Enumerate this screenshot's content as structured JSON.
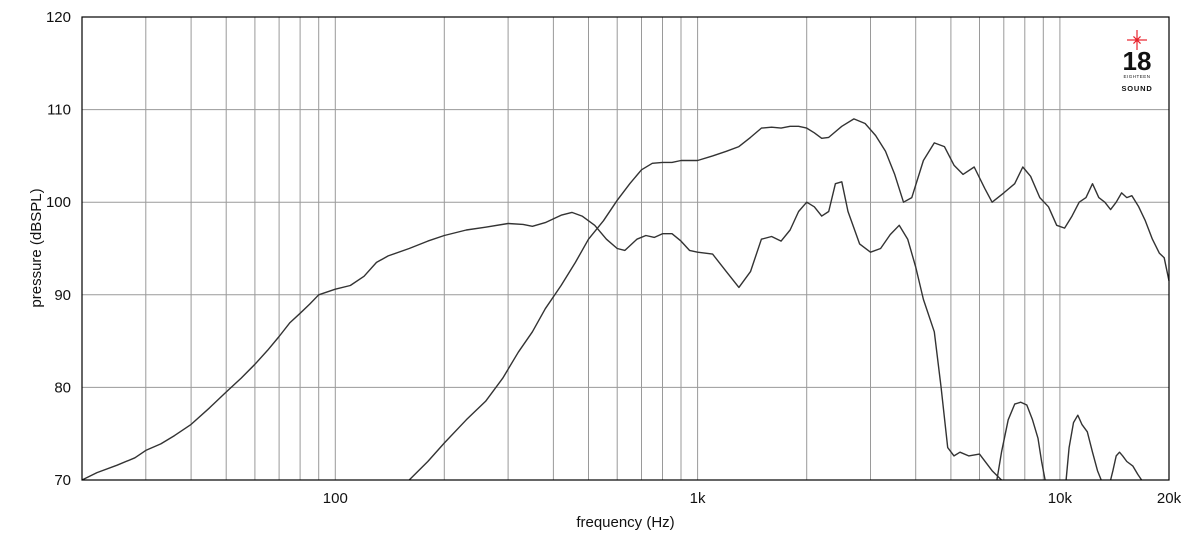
{
  "chart_data": {
    "type": "line",
    "x_scale": "log",
    "xlabel": "frequency (Hz)",
    "ylabel": "pressure (dBSPL)",
    "xlim": [
      20,
      20000
    ],
    "ylim": [
      70,
      120
    ],
    "grid": true,
    "x_ticks": [
      {
        "value": 100,
        "label": "100"
      },
      {
        "value": 1000,
        "label": "1k"
      },
      {
        "value": 10000,
        "label": "10k"
      },
      {
        "value": 20000,
        "label": "20k"
      }
    ],
    "y_ticks": [
      {
        "value": 70,
        "label": "70"
      },
      {
        "value": 80,
        "label": "80"
      },
      {
        "value": 90,
        "label": "90"
      },
      {
        "value": 100,
        "label": "100"
      },
      {
        "value": 110,
        "label": "110"
      },
      {
        "value": 120,
        "label": "120"
      }
    ],
    "series": [
      {
        "points": [
          [
            20,
            70.0
          ],
          [
            22,
            70.8
          ],
          [
            25,
            71.6
          ],
          [
            28,
            72.4
          ],
          [
            30,
            73.2
          ],
          [
            33,
            73.9
          ],
          [
            36,
            74.8
          ],
          [
            40,
            76.0
          ],
          [
            45,
            77.8
          ],
          [
            50,
            79.5
          ],
          [
            55,
            81.0
          ],
          [
            60,
            82.5
          ],
          [
            65,
            84.0
          ],
          [
            70,
            85.5
          ],
          [
            75,
            87.0
          ],
          [
            80,
            88.0
          ],
          [
            85,
            89.0
          ],
          [
            90,
            90.0
          ],
          [
            100,
            90.6
          ],
          [
            110,
            91.0
          ],
          [
            120,
            92.0
          ],
          [
            130,
            93.5
          ],
          [
            140,
            94.2
          ],
          [
            160,
            95.0
          ],
          [
            180,
            95.8
          ],
          [
            200,
            96.4
          ],
          [
            230,
            97.0
          ],
          [
            260,
            97.3
          ],
          [
            300,
            97.7
          ],
          [
            330,
            97.6
          ],
          [
            350,
            97.4
          ],
          [
            380,
            97.8
          ],
          [
            420,
            98.6
          ],
          [
            450,
            98.9
          ],
          [
            480,
            98.5
          ],
          [
            520,
            97.5
          ],
          [
            560,
            96.0
          ],
          [
            600,
            95.0
          ],
          [
            630,
            94.8
          ],
          [
            680,
            96.0
          ],
          [
            720,
            96.4
          ],
          [
            760,
            96.2
          ],
          [
            800,
            96.6
          ],
          [
            850,
            96.6
          ],
          [
            900,
            95.8
          ],
          [
            950,
            94.8
          ],
          [
            1000,
            94.6
          ],
          [
            1100,
            94.4
          ],
          [
            1200,
            92.5
          ],
          [
            1300,
            90.8
          ],
          [
            1400,
            92.5
          ],
          [
            1500,
            96.0
          ],
          [
            1600,
            96.3
          ],
          [
            1700,
            95.8
          ],
          [
            1800,
            97.0
          ],
          [
            1900,
            99.0
          ],
          [
            2000,
            100.0
          ],
          [
            2100,
            99.5
          ],
          [
            2200,
            98.5
          ],
          [
            2300,
            99.0
          ],
          [
            2400,
            102.0
          ],
          [
            2500,
            102.2
          ],
          [
            2600,
            99.0
          ],
          [
            2800,
            95.5
          ],
          [
            3000,
            94.6
          ],
          [
            3200,
            95.0
          ],
          [
            3400,
            96.5
          ],
          [
            3600,
            97.5
          ],
          [
            3800,
            96.0
          ],
          [
            4000,
            93.0
          ],
          [
            4200,
            89.5
          ],
          [
            4500,
            86.0
          ],
          [
            4700,
            80.0
          ],
          [
            4900,
            73.5
          ],
          [
            5100,
            72.6
          ],
          [
            5300,
            73.0
          ],
          [
            5600,
            72.6
          ],
          [
            6000,
            72.8
          ],
          [
            6500,
            71.0
          ],
          [
            6900,
            70.0
          ]
        ]
      },
      {
        "points": [
          [
            160,
            70.0
          ],
          [
            180,
            72.0
          ],
          [
            200,
            74.0
          ],
          [
            230,
            76.5
          ],
          [
            260,
            78.5
          ],
          [
            290,
            81.0
          ],
          [
            320,
            83.8
          ],
          [
            350,
            86.0
          ],
          [
            380,
            88.5
          ],
          [
            420,
            91.0
          ],
          [
            460,
            93.5
          ],
          [
            500,
            96.0
          ],
          [
            550,
            98.0
          ],
          [
            600,
            100.2
          ],
          [
            650,
            102.0
          ],
          [
            700,
            103.5
          ],
          [
            750,
            104.2
          ],
          [
            800,
            104.3
          ],
          [
            850,
            104.3
          ],
          [
            900,
            104.5
          ],
          [
            1000,
            104.5
          ],
          [
            1100,
            105.0
          ],
          [
            1200,
            105.5
          ],
          [
            1300,
            106.0
          ],
          [
            1400,
            107.0
          ],
          [
            1500,
            108.0
          ],
          [
            1600,
            108.1
          ],
          [
            1700,
            108.0
          ],
          [
            1800,
            108.2
          ],
          [
            1900,
            108.2
          ],
          [
            2000,
            108.0
          ],
          [
            2100,
            107.5
          ],
          [
            2200,
            106.9
          ],
          [
            2300,
            107.0
          ],
          [
            2500,
            108.2
          ],
          [
            2700,
            109.0
          ],
          [
            2900,
            108.5
          ],
          [
            3100,
            107.2
          ],
          [
            3300,
            105.5
          ],
          [
            3500,
            103.0
          ],
          [
            3700,
            100.0
          ],
          [
            3900,
            100.5
          ],
          [
            4200,
            104.5
          ],
          [
            4500,
            106.4
          ],
          [
            4800,
            106.0
          ],
          [
            5100,
            104.0
          ],
          [
            5400,
            103.0
          ],
          [
            5800,
            103.8
          ],
          [
            6200,
            101.5
          ],
          [
            6500,
            100.0
          ],
          [
            7000,
            101.0
          ],
          [
            7500,
            102.0
          ],
          [
            7900,
            103.8
          ],
          [
            8300,
            102.8
          ],
          [
            8800,
            100.5
          ],
          [
            9300,
            99.5
          ],
          [
            9800,
            97.5
          ],
          [
            10300,
            97.2
          ],
          [
            10800,
            98.5
          ],
          [
            11300,
            100.0
          ],
          [
            11800,
            100.5
          ],
          [
            12300,
            102.0
          ],
          [
            12800,
            100.5
          ],
          [
            13300,
            100.0
          ],
          [
            13800,
            99.2
          ],
          [
            14300,
            100.0
          ],
          [
            14800,
            101.0
          ],
          [
            15300,
            100.5
          ],
          [
            15800,
            100.7
          ],
          [
            16500,
            99.5
          ],
          [
            17200,
            98.0
          ],
          [
            18000,
            96.0
          ],
          [
            18800,
            94.5
          ],
          [
            19400,
            94.0
          ],
          [
            20000,
            91.5
          ]
        ]
      },
      {
        "points": [
          [
            6700,
            70.0
          ],
          [
            6900,
            73.0
          ],
          [
            7200,
            76.5
          ],
          [
            7500,
            78.2
          ],
          [
            7800,
            78.4
          ],
          [
            8100,
            78.1
          ],
          [
            8400,
            76.5
          ],
          [
            8700,
            74.5
          ],
          [
            8900,
            72.0
          ],
          [
            9100,
            70.0
          ]
        ]
      },
      {
        "points": [
          [
            10400,
            70.0
          ],
          [
            10600,
            73.5
          ],
          [
            10900,
            76.2
          ],
          [
            11200,
            77.0
          ],
          [
            11500,
            76.0
          ],
          [
            11900,
            75.2
          ],
          [
            12300,
            73.0
          ],
          [
            12700,
            71.0
          ],
          [
            13000,
            70.0
          ]
        ]
      },
      {
        "points": [
          [
            13800,
            70.0
          ],
          [
            14000,
            71.0
          ],
          [
            14300,
            72.6
          ],
          [
            14600,
            73.0
          ],
          [
            14900,
            72.6
          ],
          [
            15300,
            72.0
          ],
          [
            15900,
            71.5
          ],
          [
            16400,
            70.6
          ],
          [
            16800,
            70.0
          ]
        ]
      }
    ]
  },
  "logo": {
    "number": "18",
    "line1": "EIGHTEEN",
    "line2": "SOUND",
    "star_color": "#e8222b"
  },
  "colors": {
    "line": "#333333",
    "grid": "#9a9a9a",
    "frame": "#000000"
  }
}
